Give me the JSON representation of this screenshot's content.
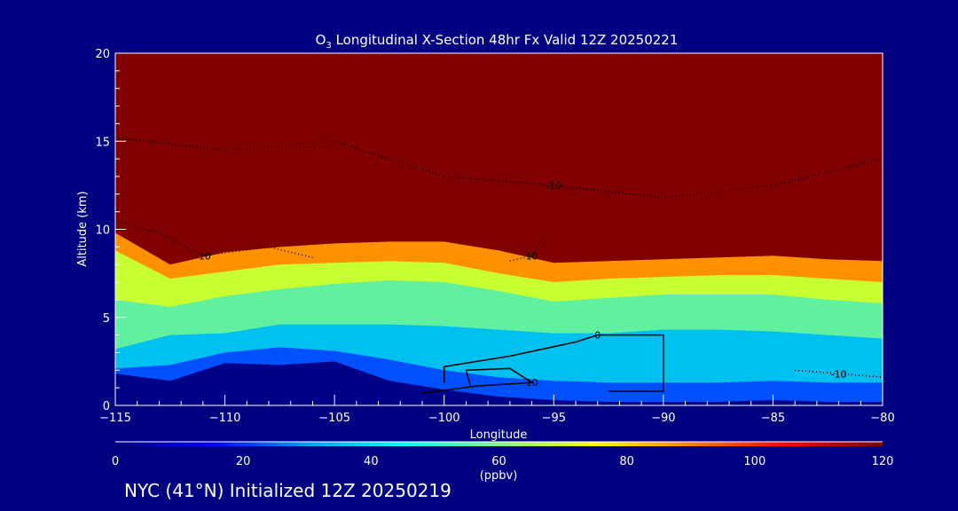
{
  "chart_data": {
    "type": "heatmap",
    "title_prefix": "O",
    "title_sub": "3",
    "title_rest": " Longitudinal X-Section 48hr  Fx Valid 12Z 20250221",
    "xlabel": "Longitude",
    "ylabel": "Altitude (km)",
    "xlim": [
      -115,
      -80
    ],
    "ylim": [
      0,
      20
    ],
    "xticks": [
      -115,
      -110,
      -105,
      -100,
      -95,
      -90,
      -85,
      -80
    ],
    "xtick_labels": [
      "−115",
      "−110",
      "−105",
      "−100",
      "−95",
      "−90",
      "−85",
      "−80"
    ],
    "yticks": [
      0,
      5,
      10,
      15,
      20
    ],
    "ytick_labels": [
      "0",
      "5",
      "10",
      "15",
      "20"
    ],
    "longitudes": [
      -115,
      -112.5,
      -110,
      -107.5,
      -105,
      -102.5,
      -100,
      -97.5,
      -95,
      -92.5,
      -90,
      -87.5,
      -85,
      -82.5,
      -80
    ],
    "level_boundaries": [
      {
        "ppbv": 0,
        "color": "#000088",
        "alt": [
          1.8,
          1.4,
          2.4,
          2.3,
          2.5,
          1.4,
          0.9,
          0.5,
          0.3,
          0.2,
          0.2,
          0.2,
          0.3,
          0.2,
          0.2
        ]
      },
      {
        "ppbv": 20,
        "color": "#0050ff",
        "alt": [
          2.1,
          2.3,
          3.0,
          3.3,
          3.1,
          2.6,
          2.0,
          1.6,
          1.4,
          1.3,
          1.3,
          1.3,
          1.4,
          1.3,
          1.3
        ]
      },
      {
        "ppbv": 40,
        "color": "#00c0f0",
        "alt": [
          3.2,
          4.0,
          4.1,
          4.6,
          4.6,
          4.6,
          4.5,
          4.3,
          4.1,
          4.1,
          4.3,
          4.3,
          4.2,
          4.0,
          3.8
        ]
      },
      {
        "ppbv": 60,
        "color": "#60f0a0",
        "alt": [
          6.0,
          5.6,
          6.2,
          6.6,
          6.9,
          7.1,
          7.0,
          6.5,
          5.9,
          6.1,
          6.3,
          6.3,
          6.3,
          6.0,
          5.8
        ]
      },
      {
        "ppbv": 80,
        "color": "#c8ff30",
        "alt": [
          8.8,
          7.2,
          7.6,
          8.0,
          8.1,
          8.2,
          8.1,
          7.5,
          7.0,
          7.2,
          7.3,
          7.4,
          7.4,
          7.2,
          7.0
        ]
      },
      {
        "ppbv": 100,
        "color": "#ff9000",
        "alt": [
          9.8,
          8.0,
          8.7,
          9.0,
          9.2,
          9.3,
          9.3,
          8.8,
          8.1,
          8.2,
          8.3,
          8.4,
          8.5,
          8.3,
          8.2
        ]
      },
      {
        "ppbv": 120,
        "color": "#800000",
        "alt": [
          20,
          20,
          20,
          20,
          20,
          20,
          20,
          20,
          20,
          20,
          20,
          20,
          20,
          20,
          20
        ]
      }
    ],
    "contours": [
      {
        "label": "0",
        "style": "solid",
        "points": [
          [
            -100,
            1.3
          ],
          [
            -100,
            2.2
          ],
          [
            -97,
            2.8
          ],
          [
            -94,
            3.6
          ],
          [
            -93,
            4.0
          ],
          [
            -90,
            4.0
          ],
          [
            -90,
            2.2
          ],
          [
            -90,
            0.8
          ],
          [
            -92.5,
            0.8
          ]
        ]
      },
      {
        "label": "10",
        "style": "solid",
        "points": [
          [
            -98.8,
            1.1
          ],
          [
            -99,
            2.0
          ],
          [
            -97,
            2.1
          ],
          [
            -96,
            1.3
          ],
          [
            -98.5,
            1.1
          ],
          [
            -101,
            0.7
          ]
        ]
      },
      {
        "label": "-10",
        "style": "dotted",
        "points": [
          [
            -115,
            15.2
          ],
          [
            -110,
            14.5
          ],
          [
            -105,
            15
          ],
          [
            -100,
            13
          ],
          [
            -95,
            12.5
          ],
          [
            -90,
            11.8
          ],
          [
            -85,
            12.5
          ],
          [
            -80,
            14
          ]
        ]
      },
      {
        "label": "-10",
        "style": "dotted",
        "points": [
          [
            -115,
            10.5
          ],
          [
            -113,
            9.8
          ],
          [
            -111,
            8.5
          ],
          [
            -108,
            9
          ],
          [
            -106,
            8.4
          ]
        ]
      },
      {
        "label": "10",
        "style": "dotted",
        "points": [
          [
            -97,
            8.2
          ],
          [
            -96,
            8.5
          ],
          [
            -95.5,
            9.5
          ]
        ]
      },
      {
        "label": "-10",
        "style": "dotted",
        "points": [
          [
            -84,
            2.0
          ],
          [
            -82,
            1.8
          ],
          [
            -80,
            1.6
          ]
        ]
      }
    ],
    "colorbar": {
      "min": 0,
      "max": 120,
      "ticks": [
        "0",
        "20",
        "40",
        "60",
        "80",
        "100",
        "120"
      ],
      "units": "(ppbv)",
      "colors": [
        "#000080",
        "#0000ff",
        "#00a0ff",
        "#00ffff",
        "#80ff80",
        "#ffff00",
        "#ff8000",
        "#ff0000",
        "#800000"
      ]
    }
  },
  "footer": "NYC (41°N) Initialized 12Z 20250219"
}
